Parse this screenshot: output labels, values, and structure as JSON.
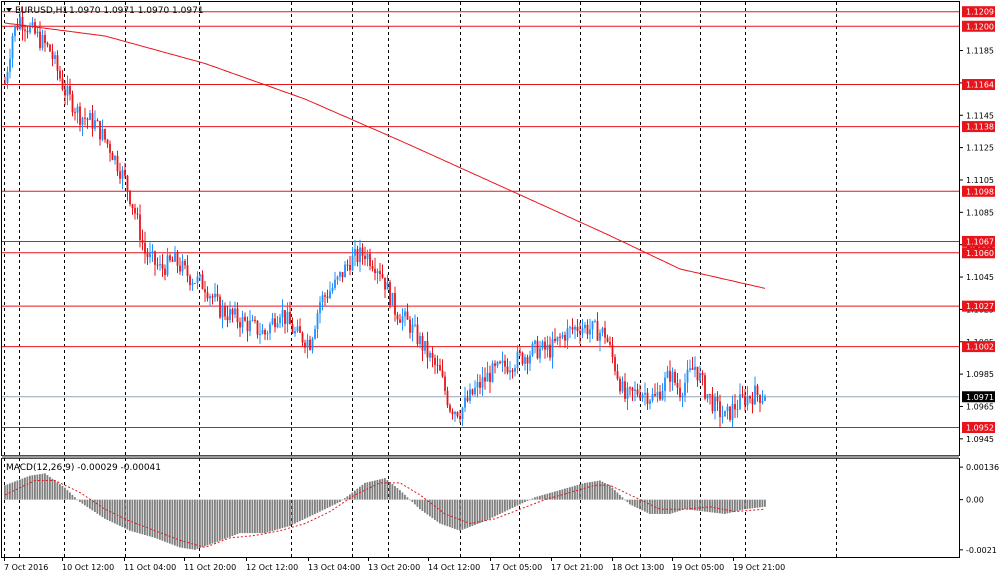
{
  "chart_data": [
    {
      "type": "candlestick",
      "symbol_label": "EURUSD,H1",
      "ohlc_label": "1.0970 1.0971 1.0970 1.0971",
      "ylim": [
        1.0935,
        1.1215
      ],
      "grid": true,
      "grid_style": "dotted-vertical",
      "y_tick_labels": [
        "1.1185",
        "1.1165",
        "1.1145",
        "1.1125",
        "1.1105",
        "1.1085",
        "1.1065",
        "1.1045",
        "1.1025",
        "1.1005",
        "1.0985",
        "1.0965",
        "1.0945"
      ],
      "x_tick_labels": [
        "7 Oct 2016",
        "10 Oct 12:00",
        "11 Oct 04:00",
        "11 Oct 20:00",
        "12 Oct 12:00",
        "13 Oct 04:00",
        "13 Oct 20:00",
        "14 Oct 12:00",
        "17 Oct 05:00",
        "17 Oct 21:00",
        "18 Oct 13:00",
        "19 Oct 05:00",
        "19 Oct 21:00"
      ],
      "horizontal_levels": [
        {
          "label": "1.1209",
          "value": 1.1209
        },
        {
          "label": "1.1200",
          "value": 1.12
        },
        {
          "label": "1.1164",
          "value": 1.1164
        },
        {
          "label": "1.1138",
          "value": 1.1138
        },
        {
          "label": "1.1098",
          "value": 1.1098
        },
        {
          "label": "1.1067",
          "value": 1.1067
        },
        {
          "label": "1.1060",
          "value": 1.106
        },
        {
          "label": "1.1027",
          "value": 1.1027
        },
        {
          "label": "1.1002",
          "value": 1.1002
        },
        {
          "label": "1.0952",
          "value": 1.0952
        }
      ],
      "current_price": {
        "label": "1.0971",
        "value": 1.0971
      },
      "price_keypoints": [
        [
          0,
          1.1165
        ],
        [
          3,
          1.1195
        ],
        [
          6,
          1.1205
        ],
        [
          12,
          1.1195
        ],
        [
          18,
          1.1185
        ],
        [
          24,
          1.116
        ],
        [
          30,
          1.1145
        ],
        [
          36,
          1.114
        ],
        [
          42,
          1.1125
        ],
        [
          48,
          1.1105
        ],
        [
          52,
          1.1085
        ],
        [
          56,
          1.106
        ],
        [
          62,
          1.105
        ],
        [
          68,
          1.1055
        ],
        [
          74,
          1.1045
        ],
        [
          80,
          1.104
        ],
        [
          86,
          1.1025
        ],
        [
          92,
          1.102
        ],
        [
          98,
          1.1015
        ],
        [
          104,
          1.101
        ],
        [
          110,
          1.1025
        ],
        [
          116,
          1.101
        ],
        [
          122,
          1.1005
        ],
        [
          126,
          1.103
        ],
        [
          132,
          1.104
        ],
        [
          138,
          1.1055
        ],
        [
          144,
          1.106
        ],
        [
          150,
          1.105
        ],
        [
          156,
          1.1025
        ],
        [
          162,
          1.1015
        ],
        [
          168,
          1.1
        ],
        [
          174,
          1.0985
        ],
        [
          178,
          1.0965
        ],
        [
          182,
          1.0962
        ],
        [
          188,
          1.0975
        ],
        [
          194,
          1.0985
        ],
        [
          200,
          1.099
        ],
        [
          206,
          1.0995
        ],
        [
          212,
          1.1
        ],
        [
          218,
          1.1
        ],
        [
          224,
          1.101
        ],
        [
          230,
          1.1015
        ],
        [
          236,
          1.1012
        ],
        [
          240,
          1.101
        ],
        [
          244,
          1.099
        ],
        [
          248,
          1.097
        ],
        [
          254,
          1.0975
        ],
        [
          260,
          1.097
        ],
        [
          266,
          1.0985
        ],
        [
          270,
          1.0975
        ],
        [
          276,
          1.099
        ],
        [
          280,
          1.0975
        ],
        [
          284,
          1.0965
        ],
        [
          288,
          1.0958
        ],
        [
          292,
          1.0965
        ],
        [
          296,
          1.097
        ],
        [
          300,
          1.0973
        ],
        [
          304,
          1.0971
        ]
      ],
      "moving_average_keypoints": [
        [
          0,
          1.1202
        ],
        [
          40,
          1.1194
        ],
        [
          80,
          1.1177
        ],
        [
          120,
          1.1155
        ],
        [
          160,
          1.1128
        ],
        [
          200,
          1.11
        ],
        [
          240,
          1.1072
        ],
        [
          270,
          1.105
        ],
        [
          304,
          1.1038
        ]
      ]
    },
    {
      "type": "histogram",
      "indicator_label": "MACD(12,26,9) -0.00029 -0.00041",
      "ylim": [
        -0.0024,
        0.0017
      ],
      "y_tick_labels": [
        {
          "label": "0.00136",
          "value": 0.00136
        },
        {
          "label": "0.00",
          "value": 0.0
        },
        {
          "label": "-0.0021",
          "value": -0.0021
        }
      ],
      "histogram_keypoints": [
        [
          0,
          0.0006
        ],
        [
          10,
          0.001
        ],
        [
          16,
          0.0011
        ],
        [
          24,
          0.0005
        ],
        [
          30,
          -0.0001
        ],
        [
          40,
          -0.0008
        ],
        [
          50,
          -0.0013
        ],
        [
          60,
          -0.0016
        ],
        [
          70,
          -0.002
        ],
        [
          76,
          -0.0021
        ],
        [
          84,
          -0.0018
        ],
        [
          94,
          -0.0014
        ],
        [
          104,
          -0.0014
        ],
        [
          114,
          -0.0011
        ],
        [
          124,
          -0.0006
        ],
        [
          134,
          -0.0001
        ],
        [
          144,
          0.0007
        ],
        [
          152,
          0.0009
        ],
        [
          158,
          0.0004
        ],
        [
          166,
          -0.0004
        ],
        [
          174,
          -0.001
        ],
        [
          182,
          -0.0013
        ],
        [
          192,
          -0.0009
        ],
        [
          202,
          -0.0004
        ],
        [
          212,
          0.0001
        ],
        [
          222,
          0.0004
        ],
        [
          232,
          0.0007
        ],
        [
          238,
          0.0008
        ],
        [
          242,
          0.0006
        ],
        [
          250,
          -0.0002
        ],
        [
          258,
          -0.0006
        ],
        [
          266,
          -0.0006
        ],
        [
          272,
          -0.0004
        ],
        [
          280,
          -0.0005
        ],
        [
          288,
          -0.0006
        ],
        [
          296,
          -0.0004
        ],
        [
          304,
          -0.0003
        ]
      ],
      "signal_keypoints": [
        [
          0,
          0.0002
        ],
        [
          12,
          0.0008
        ],
        [
          20,
          0.0008
        ],
        [
          30,
          0.0003
        ],
        [
          40,
          -0.0004
        ],
        [
          50,
          -0.0009
        ],
        [
          60,
          -0.0013
        ],
        [
          70,
          -0.0017
        ],
        [
          80,
          -0.002
        ],
        [
          90,
          -0.0016
        ],
        [
          100,
          -0.0015
        ],
        [
          110,
          -0.0013
        ],
        [
          120,
          -0.001
        ],
        [
          130,
          -0.0005
        ],
        [
          140,
          0.0002
        ],
        [
          150,
          0.0007
        ],
        [
          158,
          0.0007
        ],
        [
          166,
          0.0002
        ],
        [
          176,
          -0.0006
        ],
        [
          186,
          -0.001
        ],
        [
          196,
          -0.0008
        ],
        [
          206,
          -0.0004
        ],
        [
          216,
          0.0
        ],
        [
          226,
          0.0003
        ],
        [
          236,
          0.0006
        ],
        [
          242,
          0.0006
        ],
        [
          252,
          0.0001
        ],
        [
          262,
          -0.0004
        ],
        [
          272,
          -0.0004
        ],
        [
          282,
          -0.0003
        ],
        [
          292,
          -0.0005
        ],
        [
          304,
          -0.0004
        ]
      ]
    }
  ],
  "colors": {
    "bull": "#1e90ff",
    "bear": "#e8141b",
    "level_line": "#e8141b",
    "moving_average": "#e8141b",
    "current_line": "#8fa6b8",
    "grid": "#000000",
    "histogram": "#7f7f7f",
    "label_bg_red": "#e8141b",
    "label_bg_current": "#000000"
  }
}
